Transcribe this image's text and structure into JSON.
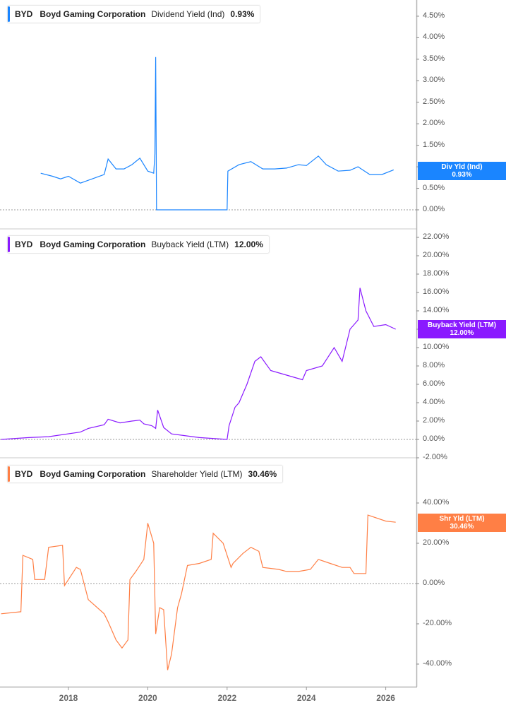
{
  "panels": [
    {
      "ticker": "BYD",
      "company": "Boyd Gaming Corporation",
      "metric": "Dividend Yield (Ind)",
      "value": "0.93%",
      "color": "#1a85ff",
      "badge_label": "Div Yld (Ind)",
      "badge_value": "0.93%",
      "y_ticks": [
        "4.50%",
        "4.00%",
        "3.50%",
        "3.00%",
        "2.50%",
        "2.00%",
        "1.50%",
        "1.00%",
        "0.50%",
        "0.00%"
      ]
    },
    {
      "ticker": "BYD",
      "company": "Boyd Gaming Corporation",
      "metric": "Buyback Yield (LTM)",
      "value": "12.00%",
      "color": "#8a1aff",
      "badge_label": "Buyback Yield (LTM)",
      "badge_value": "12.00%",
      "y_ticks": [
        "22.00%",
        "20.00%",
        "18.00%",
        "16.00%",
        "14.00%",
        "12.00%",
        "10.00%",
        "8.00%",
        "6.00%",
        "4.00%",
        "2.00%",
        "0.00%",
        "-2.00%"
      ]
    },
    {
      "ticker": "BYD",
      "company": "Boyd Gaming Corporation",
      "metric": "Shareholder Yield (LTM)",
      "value": "30.46%",
      "color": "#ff7f45",
      "badge_label": "Shr Yld (LTM)",
      "badge_value": "30.46%",
      "y_ticks": [
        "40.00%",
        "20.00%",
        "0.00%",
        "-20.00%",
        "-40.00%"
      ]
    }
  ],
  "x_axis": {
    "ticks": [
      "2018",
      "2020",
      "2022",
      "2024",
      "2026"
    ]
  },
  "chart_data": [
    {
      "type": "line",
      "title": "BYD Boyd Gaming Corporation Dividend Yield (Ind)",
      "ylabel": "Dividend Yield (Ind) %",
      "ylim": [
        0,
        4.6
      ],
      "grid": false,
      "legend_position": "top-left",
      "x": [
        2017.3,
        2017.6,
        2017.8,
        2018.0,
        2018.3,
        2018.6,
        2018.9,
        2019.0,
        2019.2,
        2019.4,
        2019.6,
        2019.8,
        2020.0,
        2020.15,
        2020.18,
        2020.2,
        2020.22,
        2021.0,
        2022.0,
        2022.02,
        2022.3,
        2022.6,
        2022.9,
        2023.2,
        2023.5,
        2023.8,
        2024.0,
        2024.3,
        2024.5,
        2024.8,
        2025.1,
        2025.3,
        2025.6,
        2025.9,
        2026.2
      ],
      "values": [
        0.85,
        0.78,
        0.72,
        0.78,
        0.62,
        0.72,
        0.82,
        1.18,
        0.95,
        0.95,
        1.05,
        1.2,
        0.9,
        0.85,
        1.3,
        3.55,
        0.0,
        0.0,
        0.0,
        0.9,
        1.05,
        1.12,
        0.95,
        0.95,
        0.97,
        1.05,
        1.03,
        1.25,
        1.05,
        0.9,
        0.92,
        1.0,
        0.82,
        0.82,
        0.93
      ],
      "series": [
        {
          "name": "Dividend Yield (Ind)",
          "last": 0.93
        }
      ]
    },
    {
      "type": "line",
      "title": "BYD Boyd Gaming Corporation Buyback Yield (LTM)",
      "ylabel": "Buyback Yield (LTM) %",
      "ylim": [
        -2,
        23
      ],
      "grid": false,
      "legend_position": "top-left",
      "x": [
        2016.3,
        2017.0,
        2017.5,
        2018.3,
        2018.5,
        2018.9,
        2019.0,
        2019.3,
        2019.6,
        2019.8,
        2019.9,
        2020.1,
        2020.2,
        2020.25,
        2020.4,
        2020.6,
        2021.3,
        2022.0,
        2022.05,
        2022.2,
        2022.3,
        2022.5,
        2022.7,
        2022.85,
        2023.1,
        2023.5,
        2023.9,
        2024.0,
        2024.4,
        2024.7,
        2024.9,
        2025.1,
        2025.3,
        2025.35,
        2025.5,
        2025.7,
        2026.0,
        2026.25
      ],
      "values": [
        0.0,
        0.2,
        0.3,
        0.8,
        1.2,
        1.6,
        2.2,
        1.8,
        2.0,
        2.1,
        1.7,
        1.5,
        1.2,
        3.2,
        1.3,
        0.6,
        0.2,
        0.0,
        1.5,
        3.5,
        4.0,
        6.0,
        8.5,
        9.0,
        7.5,
        7.0,
        6.5,
        7.5,
        8.0,
        10.0,
        8.5,
        12.0,
        13.0,
        16.5,
        14.0,
        12.3,
        12.5,
        12.0
      ],
      "series": [
        {
          "name": "Buyback Yield (LTM)",
          "last": 12.0
        }
      ]
    },
    {
      "type": "line",
      "title": "BYD Boyd Gaming Corporation Shareholder Yield (LTM)",
      "ylabel": "Shareholder Yield (LTM) %",
      "ylim": [
        -45,
        48
      ],
      "grid": false,
      "legend_position": "top-left",
      "x": [
        2016.3,
        2016.8,
        2016.85,
        2017.1,
        2017.15,
        2017.4,
        2017.5,
        2017.85,
        2017.9,
        2018.2,
        2018.3,
        2018.5,
        2018.9,
        2019.0,
        2019.2,
        2019.35,
        2019.5,
        2019.55,
        2019.7,
        2019.9,
        2020.0,
        2020.15,
        2020.2,
        2020.3,
        2020.4,
        2020.5,
        2020.6,
        2020.75,
        2020.85,
        2021.0,
        2021.3,
        2021.6,
        2021.65,
        2021.9,
        2022.1,
        2022.15,
        2022.4,
        2022.6,
        2022.8,
        2022.9,
        2023.3,
        2023.5,
        2023.8,
        2024.1,
        2024.3,
        2024.6,
        2024.9,
        2025.1,
        2025.2,
        2025.5,
        2025.55,
        2026.0,
        2026.25
      ],
      "values": [
        -15,
        -14,
        14,
        12,
        2,
        2,
        18,
        19,
        -1,
        8,
        7,
        -8,
        -15,
        -19,
        -28,
        -32,
        -28,
        2,
        6,
        12,
        30,
        20,
        -25,
        -12,
        -13,
        -43,
        -35,
        -12,
        -5,
        9,
        10,
        12,
        25,
        20,
        8,
        10,
        15,
        18,
        16,
        8,
        7,
        6,
        6,
        7,
        12,
        10,
        8,
        8,
        5,
        5,
        34,
        31,
        30.46
      ],
      "series": [
        {
          "name": "Shareholder Yield (LTM)",
          "last": 30.46
        }
      ]
    }
  ]
}
